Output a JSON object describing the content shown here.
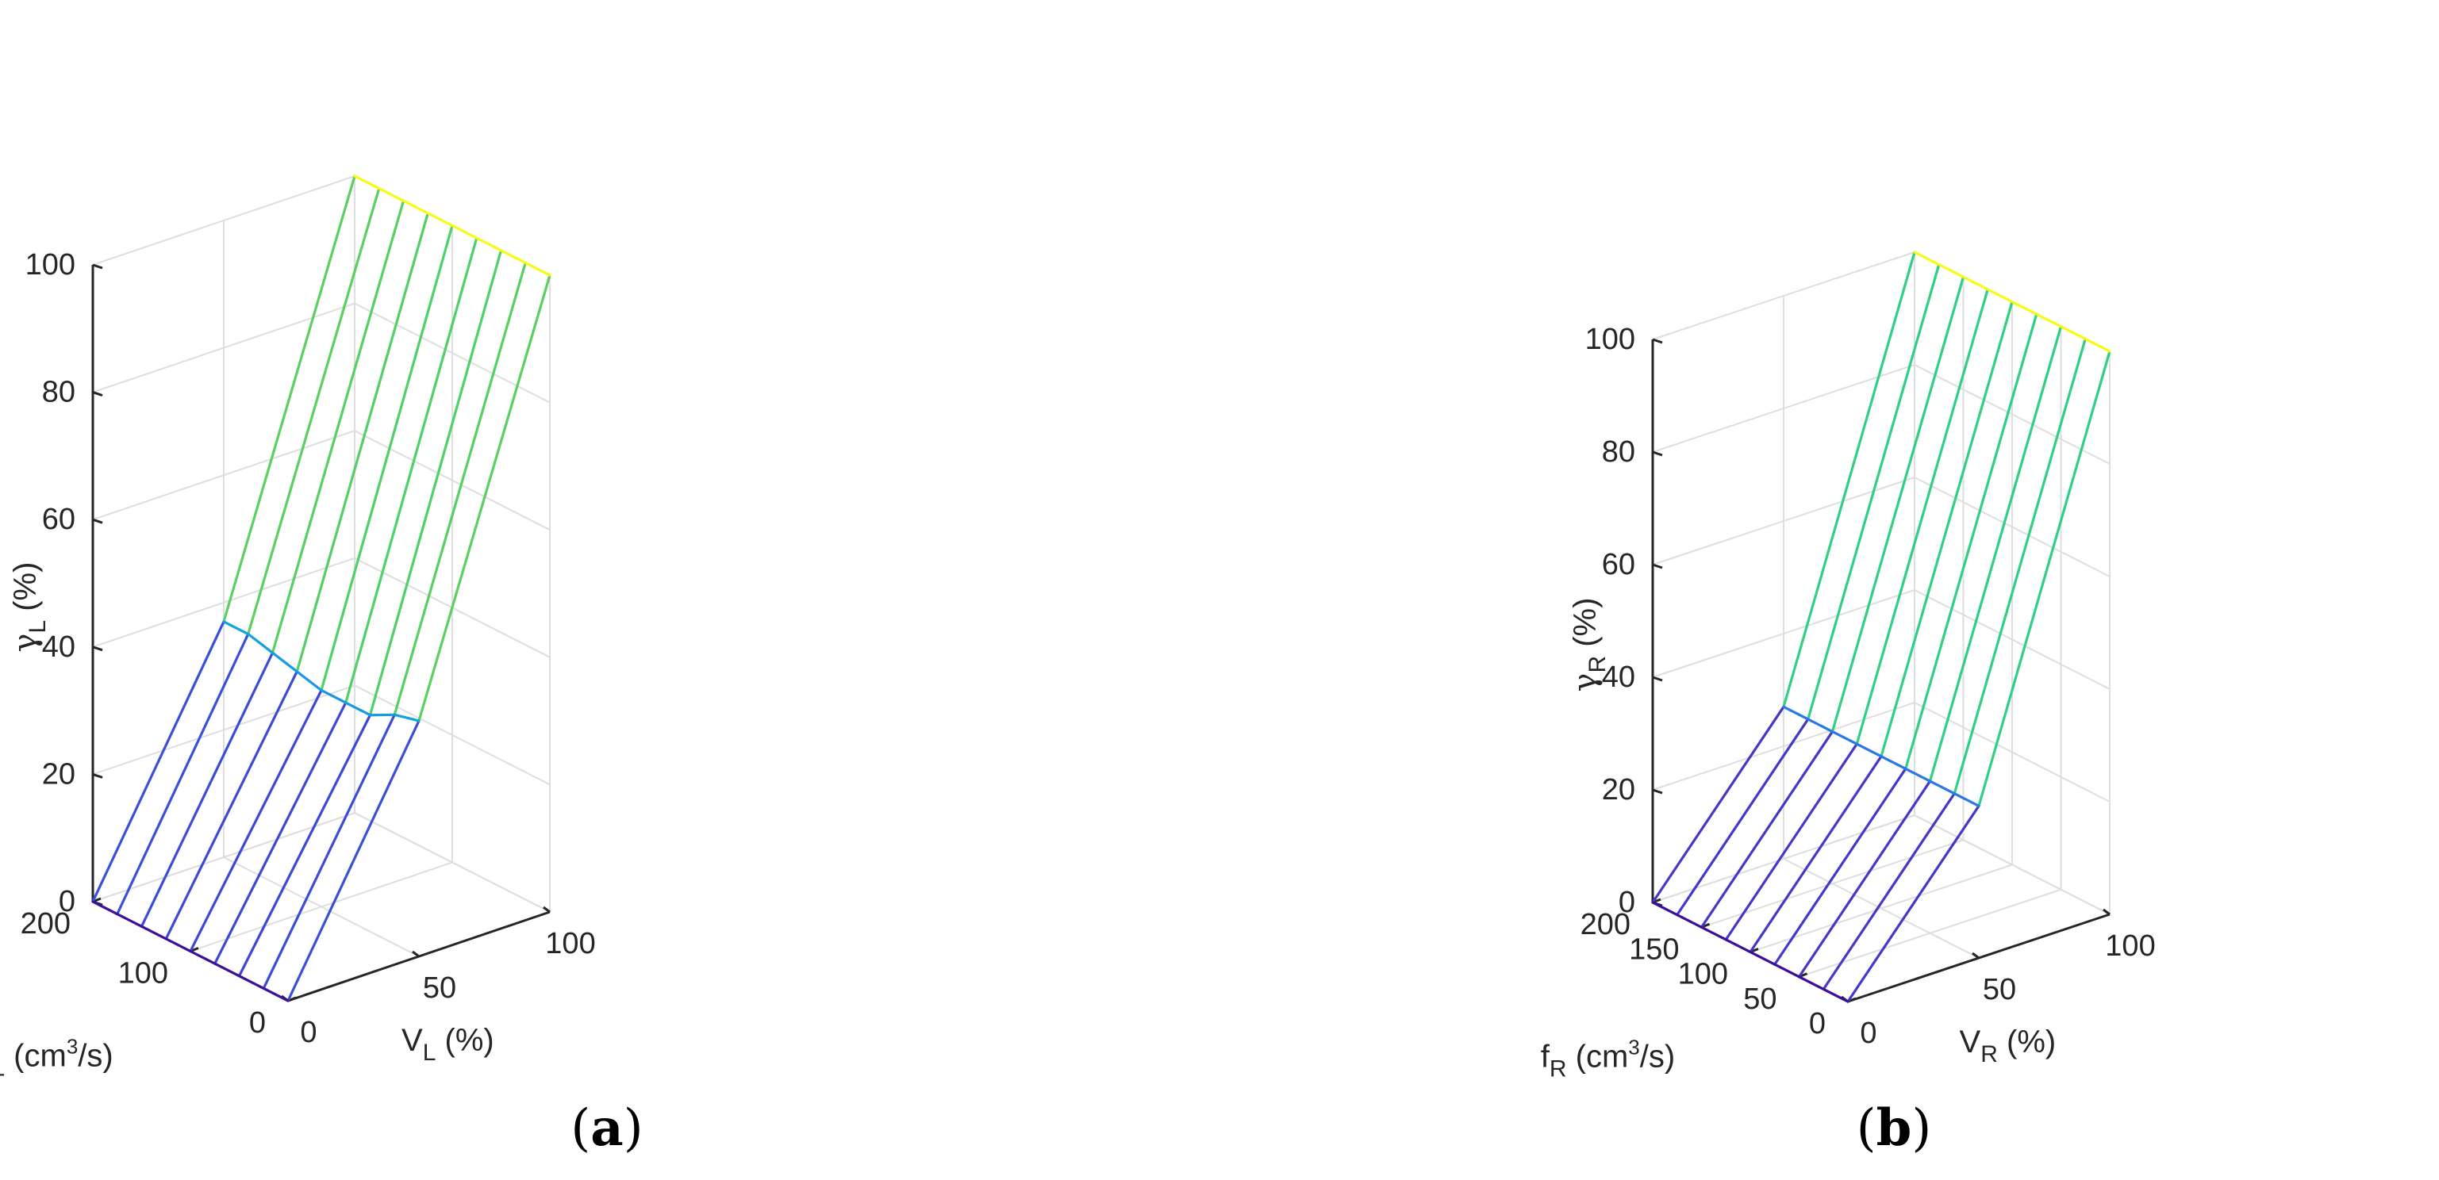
{
  "chart_data": [
    {
      "type": "surface",
      "panel_label": "(a)",
      "panel_letter": "a",
      "xlabel": {
        "base": "V",
        "sub": "L",
        "unit": " (%)"
      },
      "ylabel": {
        "base": "f",
        "sub": "L",
        "unit_pre": " (cm",
        "sup": "3",
        "unit_post": "/s)"
      },
      "zlabel": {
        "base": "γ",
        "sub": "L",
        "unit": " (%)"
      },
      "xlim": [
        0,
        100
      ],
      "ylim": [
        0,
        200
      ],
      "zlim": [
        0,
        100
      ],
      "xticks": [
        "0",
        "50",
        "100"
      ],
      "yticks": [
        "0",
        "100",
        "200"
      ],
      "zticks": [
        "0",
        "20",
        "40",
        "60",
        "80",
        "100"
      ],
      "V": [
        0,
        50,
        100
      ],
      "f": [
        0,
        25,
        50,
        75,
        100,
        125,
        150,
        175,
        200
      ],
      "gamma": [
        [
          0,
          37,
          100
        ],
        [
          0,
          36,
          100
        ],
        [
          0,
          34,
          100
        ],
        [
          0,
          34,
          100
        ],
        [
          0,
          34,
          100
        ],
        [
          0,
          35,
          100
        ],
        [
          0,
          36,
          100
        ],
        [
          0,
          37,
          100
        ],
        [
          0,
          37,
          100
        ]
      ],
      "colormap_stops": [
        "#3e0e9c",
        "#4633c6",
        "#2e6fe8",
        "#11a6e0",
        "#17c6b4",
        "#27d08a",
        "#95d12e",
        "#e8c625",
        "#f9fb0e"
      ]
    },
    {
      "type": "surface",
      "panel_label": "(b)",
      "panel_letter": "b",
      "xlabel": {
        "base": "V",
        "sub": "R",
        "unit": " (%)"
      },
      "ylabel": {
        "base": "f",
        "sub": "R",
        "unit_pre": " (cm",
        "sup": "3",
        "unit_post": "/s)"
      },
      "zlabel": {
        "base": "γ",
        "sub": "R",
        "unit": " (%)"
      },
      "xlim": [
        0,
        100
      ],
      "ylim": [
        0,
        200
      ],
      "zlim": [
        0,
        100
      ],
      "xticks": [
        "0",
        "50",
        "100"
      ],
      "yticks": [
        "0",
        "50",
        "100",
        "150",
        "200"
      ],
      "zticks": [
        "0",
        "20",
        "40",
        "60",
        "80",
        "100"
      ],
      "V": [
        0,
        50,
        100
      ],
      "f": [
        0,
        25,
        50,
        75,
        100,
        125,
        150,
        175,
        200
      ],
      "gamma": [
        [
          0,
          27,
          100
        ],
        [
          0,
          27,
          100
        ],
        [
          0,
          27,
          100
        ],
        [
          0,
          27,
          100
        ],
        [
          0,
          27,
          100
        ],
        [
          0,
          27,
          100
        ],
        [
          0,
          27,
          100
        ],
        [
          0,
          27,
          100
        ],
        [
          0,
          27,
          100
        ]
      ],
      "colormap_stops": [
        "#3e0e9c",
        "#4633c6",
        "#2e6fe8",
        "#11a6e0",
        "#17c6b4",
        "#27d08a",
        "#95d12e",
        "#e8c625",
        "#f9fb0e"
      ]
    }
  ]
}
